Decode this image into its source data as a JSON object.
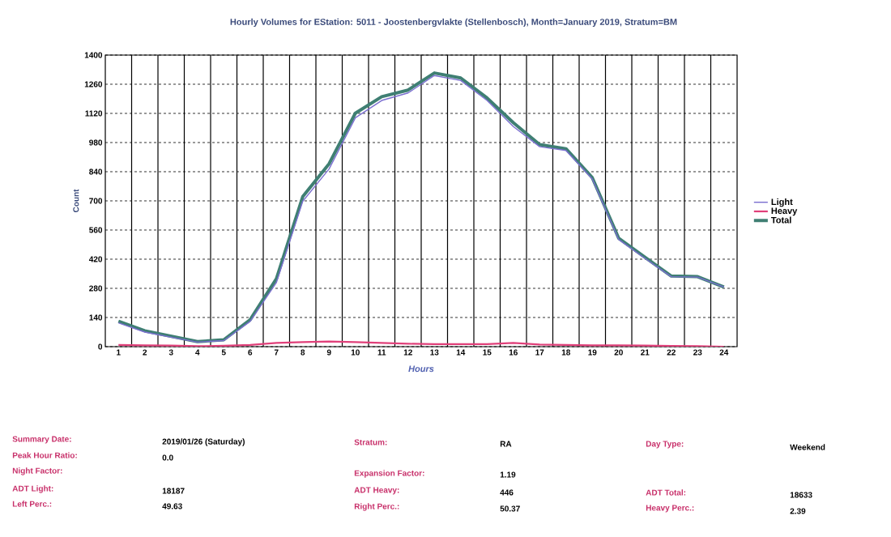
{
  "chart_data": {
    "type": "line",
    "title": "Hourly Volumes for EStation: 5011 - Joostenbergvlakte (Stellenbosch), Month=January 2019, Stratum=BM",
    "xlabel": "Hours",
    "ylabel": "Count",
    "categories": [
      "1",
      "2",
      "3",
      "4",
      "5",
      "6",
      "7",
      "8",
      "9",
      "10",
      "11",
      "12",
      "13",
      "14",
      "15",
      "16",
      "17",
      "18",
      "19",
      "20",
      "21",
      "22",
      "23",
      "24"
    ],
    "series": [
      {
        "name": "Light",
        "color": "#7b6fd0",
        "values": [
          114,
          70,
          45,
          22,
          29,
          121,
          308,
          698,
          853,
          1099,
          1182,
          1218,
          1302,
          1278,
          1182,
          1057,
          960,
          942,
          805,
          515,
          424,
          336,
          334,
          286
        ]
      },
      {
        "name": "Heavy",
        "color": "#e0407a",
        "values": [
          8,
          6,
          5,
          2,
          4,
          8,
          18,
          22,
          25,
          22,
          18,
          14,
          12,
          12,
          12,
          18,
          10,
          8,
          6,
          6,
          5,
          3,
          2,
          0
        ]
      },
      {
        "name": "Total",
        "color": "#3f7f73",
        "values": [
          122,
          76,
          50,
          24,
          33,
          129,
          326,
          720,
          878,
          1121,
          1200,
          1232,
          1314,
          1290,
          1194,
          1075,
          970,
          950,
          811,
          521,
          429,
          339,
          336,
          286
        ]
      }
    ],
    "ylim": [
      0,
      1400
    ],
    "yticks": [
      0,
      140,
      280,
      420,
      560,
      700,
      840,
      980,
      1120,
      1260,
      1400
    ],
    "grid": true,
    "legend": "right",
    "annotations": [
      "Summary Date:",
      "2019/01/26   (Saturday)",
      "Peak Hour Ratio:",
      "0.0",
      "Night Factor:",
      "ADT Light:",
      "18187",
      "Left Perc.:",
      "49.63",
      "Stratum:",
      "RA",
      "Expansion Factor:",
      "1.19",
      "ADT Heavy:",
      "446",
      "Right Perc.:",
      "50.37",
      "Day Type:",
      "Weekend",
      "ADT Total:",
      "18633",
      "Heavy Perc.:",
      "2.39"
    ]
  }
}
